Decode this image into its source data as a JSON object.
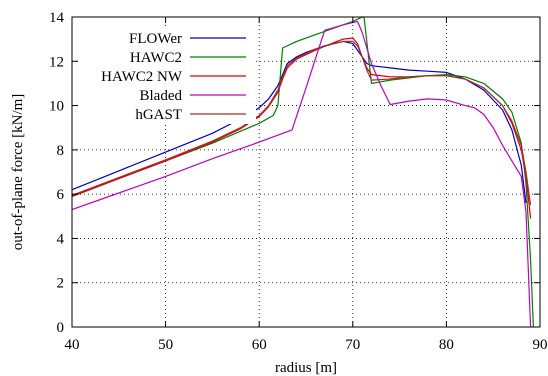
{
  "chart_data": {
    "type": "line",
    "title": "",
    "xlabel": "radius [m]",
    "ylabel": "out-of-plane force [kN/m]",
    "xlim": [
      40,
      90
    ],
    "ylim": [
      0,
      14
    ],
    "x_ticks": [
      40,
      50,
      60,
      70,
      80,
      90
    ],
    "x_tick_labels": [
      "40",
      "50",
      "60",
      "70",
      "80",
      "90"
    ],
    "y_ticks": [
      0,
      2,
      4,
      6,
      8,
      10,
      12,
      14
    ],
    "y_tick_labels": [
      "0",
      "2",
      "4",
      "6",
      "8",
      "10",
      "12",
      "14"
    ],
    "grid": true,
    "grid_style": "dotted",
    "legend_position": "top-left",
    "series": [
      {
        "name": "FLOWer",
        "color": "#0000c0",
        "x": [
          40,
          45,
          50,
          55,
          58,
          60,
          61,
          62,
          62.5,
          63,
          64,
          65,
          67,
          69,
          70,
          70.5,
          71,
          71.5,
          72,
          74,
          76,
          78,
          80,
          82,
          84,
          86,
          87,
          88,
          88.5
        ],
        "y": [
          6.2,
          7.05,
          7.9,
          8.75,
          9.4,
          9.9,
          10.3,
          10.9,
          11.4,
          11.9,
          12.2,
          12.4,
          12.7,
          12.9,
          12.8,
          12.5,
          12.2,
          11.9,
          11.8,
          11.7,
          11.6,
          11.55,
          11.5,
          11.2,
          10.7,
          9.8,
          8.9,
          7.3,
          5.6
        ]
      },
      {
        "name": "HAWC2",
        "color": "#008000",
        "x": [
          40,
          45,
          50,
          55,
          60,
          61.5,
          62,
          62.5,
          64,
          66,
          68,
          70,
          71,
          71.2,
          71.6,
          72,
          74,
          76,
          78,
          80,
          82,
          84,
          86,
          87,
          88,
          88.5,
          89,
          89.3
        ],
        "y": [
          5.9,
          6.7,
          7.5,
          8.3,
          9.2,
          9.55,
          10.0,
          12.6,
          12.9,
          13.2,
          13.5,
          13.8,
          14.0,
          14.0,
          12.5,
          11.0,
          11.15,
          11.25,
          11.35,
          11.4,
          11.3,
          11.0,
          10.3,
          9.7,
          8.3,
          6.5,
          3.0,
          0.0
        ]
      },
      {
        "name": "HAWC2 NW",
        "color": "#e00000",
        "x": [
          40,
          45,
          50,
          55,
          58,
          60,
          61,
          62,
          62.5,
          63,
          64,
          66,
          68,
          69,
          70,
          70.5,
          71,
          71.5,
          72,
          74,
          76,
          78,
          80,
          82,
          84,
          86,
          87,
          88,
          88.5,
          89
        ],
        "y": [
          5.9,
          6.7,
          7.5,
          8.35,
          8.95,
          9.5,
          9.95,
          10.6,
          11.2,
          11.7,
          12.1,
          12.5,
          12.85,
          13.0,
          13.05,
          12.8,
          12.2,
          11.7,
          11.4,
          11.3,
          11.3,
          11.35,
          11.35,
          11.2,
          10.8,
          10.0,
          9.2,
          8.0,
          6.8,
          4.9
        ]
      },
      {
        "name": "Bladed",
        "color": "#c000c0",
        "x": [
          40,
          45,
          50,
          55,
          60,
          63.5,
          65,
          67,
          69,
          70.5,
          71,
          72,
          73,
          74,
          76,
          78,
          80,
          82,
          83,
          84,
          85,
          86,
          87,
          88,
          88.5,
          89
        ],
        "y": [
          5.3,
          6.05,
          6.8,
          7.6,
          8.35,
          8.9,
          10.8,
          13.4,
          13.65,
          13.8,
          13.3,
          11.9,
          10.9,
          10.05,
          10.2,
          10.3,
          10.25,
          10.0,
          9.9,
          9.6,
          9.0,
          8.2,
          7.5,
          6.8,
          5.2,
          0.0
        ]
      },
      {
        "name": "hGAST",
        "color": "#a03030",
        "x": [
          40,
          45,
          50,
          55,
          58,
          60,
          61,
          62,
          62.5,
          63,
          64,
          66,
          68,
          69,
          70,
          70.5,
          71,
          71.5,
          72,
          74,
          76,
          78,
          80,
          82,
          84,
          86,
          87,
          88,
          88.5,
          89
        ],
        "y": [
          5.95,
          6.75,
          7.55,
          8.4,
          9.0,
          9.55,
          10.0,
          10.7,
          11.3,
          11.8,
          12.15,
          12.55,
          12.8,
          12.9,
          12.9,
          12.7,
          12.2,
          11.6,
          11.15,
          11.2,
          11.3,
          11.35,
          11.35,
          11.2,
          10.8,
          10.0,
          9.3,
          8.2,
          7.0,
          5.5
        ]
      }
    ]
  }
}
